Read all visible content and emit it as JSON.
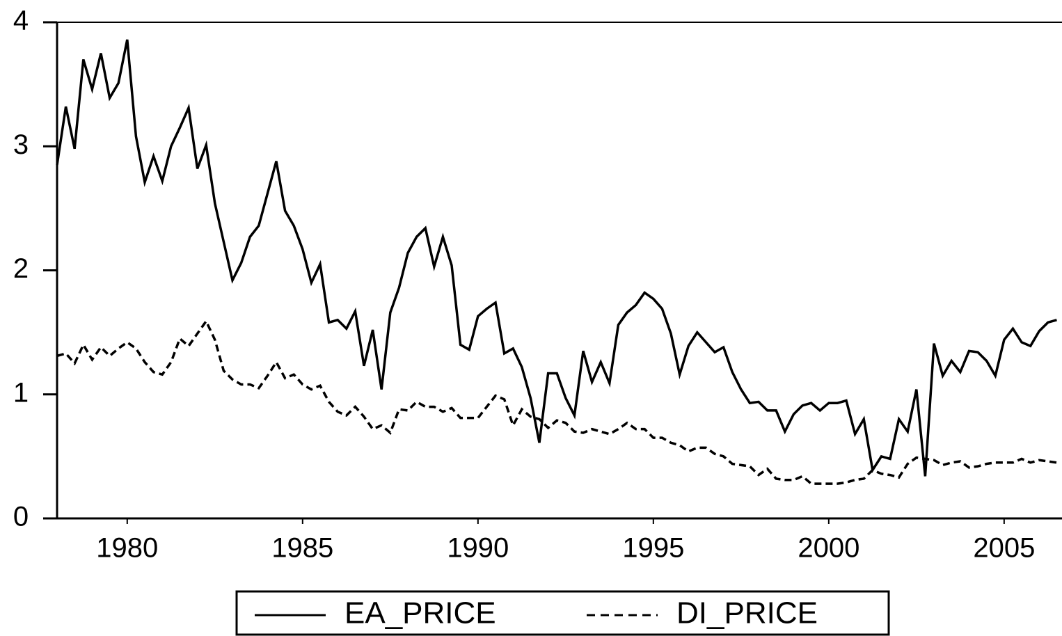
{
  "chart_data": {
    "type": "line",
    "x": [
      1978,
      1978.25,
      1978.5,
      1978.75,
      1979,
      1979.25,
      1979.5,
      1979.75,
      1980,
      1980.25,
      1980.5,
      1980.75,
      1981,
      1981.25,
      1981.5,
      1981.75,
      1982,
      1982.25,
      1982.5,
      1982.75,
      1983,
      1983.25,
      1983.5,
      1983.75,
      1984,
      1984.25,
      1984.5,
      1984.75,
      1985,
      1985.25,
      1985.5,
      1985.75,
      1986,
      1986.25,
      1986.5,
      1986.75,
      1987,
      1987.25,
      1987.5,
      1987.75,
      1988,
      1988.25,
      1988.5,
      1988.75,
      1989,
      1989.25,
      1989.5,
      1989.75,
      1990,
      1990.25,
      1990.5,
      1990.75,
      1991,
      1991.25,
      1991.5,
      1991.75,
      1992,
      1992.25,
      1992.5,
      1992.75,
      1993,
      1993.25,
      1993.5,
      1993.75,
      1994,
      1994.25,
      1994.5,
      1994.75,
      1995,
      1995.25,
      1995.5,
      1995.75,
      1996,
      1996.25,
      1996.5,
      1996.75,
      1997,
      1997.25,
      1997.5,
      1997.75,
      1998,
      1998.25,
      1998.5,
      1998.75,
      1999,
      1999.25,
      1999.5,
      1999.75,
      2000,
      2000.25,
      2000.5,
      2000.75,
      2001,
      2001.25,
      2001.5,
      2001.75,
      2002,
      2002.25,
      2002.5,
      2002.75,
      2003,
      2003.25,
      2003.5,
      2003.75,
      2004,
      2004.25,
      2004.5,
      2004.75,
      2005,
      2005.25,
      2005.5,
      2005.75,
      2006,
      2006.25,
      2006.5
    ],
    "series": [
      {
        "name": "EA_PRICE",
        "color": "#000000",
        "line_style": "solid",
        "values": [
          2.85,
          3.32,
          2.98,
          3.7,
          3.46,
          3.75,
          3.39,
          3.51,
          3.86,
          3.08,
          2.71,
          2.92,
          2.72,
          3.0,
          3.15,
          3.31,
          2.82,
          3.01,
          2.54,
          2.23,
          1.92,
          2.06,
          2.27,
          2.36,
          2.62,
          2.88,
          2.48,
          2.36,
          2.17,
          1.9,
          2.05,
          1.58,
          1.6,
          1.53,
          1.67,
          1.23,
          1.52,
          1.04,
          1.66,
          1.86,
          2.14,
          2.27,
          2.34,
          2.03,
          2.27,
          2.04,
          1.4,
          1.36,
          1.63,
          1.69,
          1.74,
          1.33,
          1.37,
          1.22,
          0.97,
          0.61,
          1.17,
          1.17,
          0.97,
          0.83,
          1.35,
          1.1,
          1.26,
          1.09,
          1.56,
          1.66,
          1.72,
          1.82,
          1.77,
          1.69,
          1.49,
          1.16,
          1.39,
          1.5,
          1.42,
          1.34,
          1.38,
          1.18,
          1.04,
          0.93,
          0.94,
          0.87,
          0.87,
          0.7,
          0.84,
          0.91,
          0.93,
          0.87,
          0.93,
          0.93,
          0.95,
          0.68,
          0.8,
          0.39,
          0.5,
          0.48,
          0.8,
          0.7,
          1.04,
          0.34,
          1.41,
          1.15,
          1.27,
          1.18,
          1.35,
          1.34,
          1.27,
          1.15,
          1.44,
          1.53,
          1.42,
          1.39,
          1.51,
          1.58,
          1.6
        ]
      },
      {
        "name": "DI_PRICE",
        "color": "#000000",
        "line_style": "dashed",
        "values": [
          1.31,
          1.33,
          1.25,
          1.4,
          1.28,
          1.38,
          1.31,
          1.37,
          1.42,
          1.37,
          1.26,
          1.18,
          1.16,
          1.26,
          1.45,
          1.39,
          1.49,
          1.59,
          1.44,
          1.19,
          1.12,
          1.08,
          1.08,
          1.05,
          1.15,
          1.26,
          1.13,
          1.16,
          1.08,
          1.04,
          1.07,
          0.94,
          0.86,
          0.83,
          0.9,
          0.82,
          0.72,
          0.75,
          0.69,
          0.88,
          0.87,
          0.94,
          0.9,
          0.9,
          0.86,
          0.89,
          0.81,
          0.81,
          0.81,
          0.9,
          0.99,
          0.96,
          0.75,
          0.88,
          0.82,
          0.8,
          0.73,
          0.79,
          0.77,
          0.7,
          0.69,
          0.72,
          0.7,
          0.68,
          0.72,
          0.77,
          0.72,
          0.72,
          0.65,
          0.65,
          0.61,
          0.59,
          0.54,
          0.57,
          0.57,
          0.52,
          0.5,
          0.44,
          0.43,
          0.42,
          0.35,
          0.4,
          0.32,
          0.31,
          0.31,
          0.34,
          0.28,
          0.28,
          0.28,
          0.28,
          0.29,
          0.31,
          0.32,
          0.39,
          0.36,
          0.35,
          0.33,
          0.44,
          0.49,
          0.48,
          0.47,
          0.43,
          0.45,
          0.46,
          0.41,
          0.42,
          0.44,
          0.45,
          0.45,
          0.45,
          0.48,
          0.45,
          0.47,
          0.46,
          0.45
        ]
      }
    ],
    "xlim": [
      1978,
      2006.65
    ],
    "xticks": [
      1980,
      1985,
      1990,
      1995,
      2000,
      2005
    ],
    "ylim": [
      0,
      4
    ],
    "yticks": [
      0,
      1,
      2,
      3,
      4
    ]
  }
}
